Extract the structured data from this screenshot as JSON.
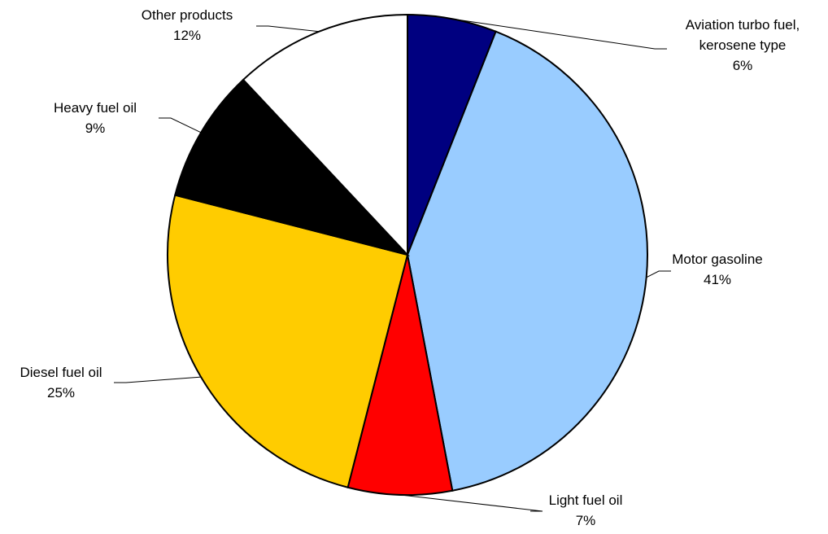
{
  "chart_data": {
    "type": "pie",
    "title": "",
    "start": "12 o'clock",
    "direction": "clockwise",
    "slices": [
      {
        "label": "Aviation turbo fuel, kerosene type",
        "label_lines": [
          "Aviation turbo fuel,",
          "kerosene type"
        ],
        "value": 6,
        "value_label": "6%",
        "color": "#000080"
      },
      {
        "label": "Motor gasoline",
        "label_lines": [
          "Motor gasoline"
        ],
        "value": 41,
        "value_label": "41%",
        "color": "#99ccff"
      },
      {
        "label": "Light fuel oil",
        "label_lines": [
          "Light fuel oil"
        ],
        "value": 7,
        "value_label": "7%",
        "color": "#ff0000"
      },
      {
        "label": "Diesel fuel oil",
        "label_lines": [
          "Diesel fuel oil"
        ],
        "value": 25,
        "value_label": "25%",
        "color": "#ffcc00"
      },
      {
        "label": "Heavy fuel oil",
        "label_lines": [
          "Heavy fuel oil"
        ],
        "value": 9,
        "value_label": "9%",
        "color": "#000000"
      },
      {
        "label": "Other products",
        "label_lines": [
          "Other products"
        ],
        "value": 12,
        "value_label": "12%",
        "color": "#ffffff"
      }
    ]
  }
}
